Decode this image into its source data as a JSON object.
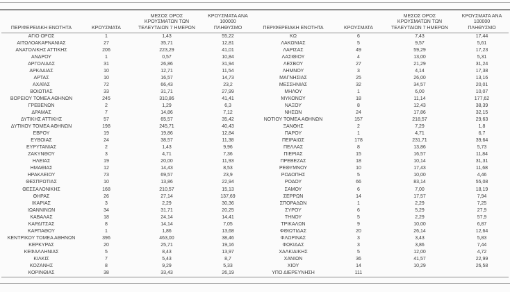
{
  "table": {
    "columns": [
      "ΠΕΡΙΦΕΡΕΙΑΚΗ ΕΝΟΤΗΤΑ",
      "ΚΡΟΥΣΜΑΤΑ",
      "ΜΕΣΟΣ ΟΡΟΣ\nΚΡΟΥΣΜΑΤΩΝ ΤΩΝ\nΤΕΛΕΥΤΑΙΩΝ 7 ΗΜΕΡΩΝ",
      "ΚΡΟΥΣΜΑΤΑ ΑΝΑ 100000\nΠΛΗΘΥΣΜΟ"
    ],
    "left_rows": [
      [
        "ΑΓΙΟ ΟΡΟΣ",
        "1",
        "1,43",
        "55,22"
      ],
      [
        "ΑΙΤΩΛΟΑΚΑΡΝΑΝΙΑΣ",
        "27",
        "35,71",
        "12,81"
      ],
      [
        "ΑΝΑΤΟΛΙΚΗΣ ΑΤΤΙΚΗΣ",
        "206",
        "223,29",
        "41,01"
      ],
      [
        "ΑΝΔΡΟΥ",
        "1",
        "0,57",
        "10,84"
      ],
      [
        "ΑΡΓΟΛΙΔΑΣ",
        "31",
        "26,86",
        "31,94"
      ],
      [
        "ΑΡΚΑΔΙΑΣ",
        "10",
        "12,71",
        "11,54"
      ],
      [
        "ΑΡΤΑΣ",
        "10",
        "16,57",
        "14,73"
      ],
      [
        "ΑΧΑΪΑΣ",
        "72",
        "66,43",
        "23,2"
      ],
      [
        "ΒΟΙΩΤΙΑΣ",
        "33",
        "31,71",
        "27,99"
      ],
      [
        "ΒΟΡΕΙΟΥ ΤΟΜΕΑ ΑΘΗΝΩΝ",
        "245",
        "310,86",
        "41,41"
      ],
      [
        "ΓΡΕΒΕΝΩΝ",
        "2",
        "1,29",
        "6,3"
      ],
      [
        "ΔΡΑΜΑΣ",
        "7",
        "14,86",
        "7,12"
      ],
      [
        "ΔΥΤΙΚΗΣ ΑΤΤΙΚΗΣ",
        "57",
        "65,57",
        "35,42"
      ],
      [
        "ΔΥΤΙΚΟΥ ΤΟΜΕΑ ΑΘΗΝΩΝ",
        "198",
        "245,71",
        "40,43"
      ],
      [
        "ΕΒΡΟΥ",
        "19",
        "19,86",
        "12,84"
      ],
      [
        "ΕΥΒΟΙΑΣ",
        "24",
        "38,57",
        "11,38"
      ],
      [
        "ΕΥΡΥΤΑΝΙΑΣ",
        "2",
        "1,43",
        "9,96"
      ],
      [
        "ΖΑΚΥΝΘΟΥ",
        "3",
        "4,71",
        "7,36"
      ],
      [
        "ΗΛΕΙΑΣ",
        "19",
        "20,00",
        "11,93"
      ],
      [
        "ΗΜΑΘΙΑΣ",
        "12",
        "14,43",
        "8,53"
      ],
      [
        "ΗΡΑΚΛΕΙΟΥ",
        "73",
        "69,57",
        "23,9"
      ],
      [
        "ΘΕΣΠΡΩΤΙΑΣ",
        "10",
        "13,86",
        "22,94"
      ],
      [
        "ΘΕΣΣΑΛΟΝΙΚΗΣ",
        "168",
        "210,57",
        "15,13"
      ],
      [
        "ΘΗΡΑΣ",
        "26",
        "27,14",
        "137,69"
      ],
      [
        "ΙΚΑΡΙΑΣ",
        "3",
        "2,29",
        "30,36"
      ],
      [
        "ΙΩΑΝΝΙΝΩΝ",
        "34",
        "31,71",
        "20,25"
      ],
      [
        "ΚΑΒΑΛΑΣ",
        "18",
        "24,14",
        "14,41"
      ],
      [
        "ΚΑΡΔΙΤΣΑΣ",
        "8",
        "14,14",
        "7,05"
      ],
      [
        "ΚΑΡΠΑΘΟΥ",
        "1",
        "1,86",
        "13,68"
      ],
      [
        "ΚΕΝΤΡΙΚΟΥ ΤΟΜΕΑ ΑΘΗΝΩΝ",
        "396",
        "463,00",
        "38,46"
      ],
      [
        "ΚΕΡΚΥΡΑΣ",
        "20",
        "25,71",
        "19,16"
      ],
      [
        "ΚΕΦΑΛΛΗΝΙΑΣ",
        "5",
        "8,43",
        "13,97"
      ],
      [
        "ΚΙΛΚΙΣ",
        "7",
        "5,43",
        "8,7"
      ],
      [
        "ΚΟΖΑΝΗΣ",
        "8",
        "9,29",
        "5,33"
      ],
      [
        "ΚΟΡΙΝΘΙΑΣ",
        "38",
        "33,43",
        "26,19"
      ]
    ],
    "right_rows": [
      [
        "ΚΩ",
        "6",
        "7,43",
        "17,44"
      ],
      [
        "ΛΑΚΩΝΙΑΣ",
        "5",
        "9,57",
        "5,61"
      ],
      [
        "ΛΑΡΙΣΑΣ",
        "49",
        "59,29",
        "17,23"
      ],
      [
        "ΛΑΣΙΘΙΟΥ",
        "4",
        "13,00",
        "5,31"
      ],
      [
        "ΛΕΣΒΟΥ",
        "27",
        "21,29",
        "31,24"
      ],
      [
        "ΛΗΜΝΟΥ",
        "3",
        "4,14",
        "17,38"
      ],
      [
        "ΜΑΓΝΗΣΙΑΣ",
        "25",
        "26,00",
        "13,16"
      ],
      [
        "ΜΕΣΣΗΝΙΑΣ",
        "32",
        "34,57",
        "20,01"
      ],
      [
        "ΜΗΛΟΥ",
        "1",
        "6,00",
        "10,07"
      ],
      [
        "ΜΥΚΟΝΟΥ",
        "18",
        "11,14",
        "177,62"
      ],
      [
        "ΝΑΞΟΥ",
        "8",
        "12,43",
        "38,39"
      ],
      [
        "ΝΗΣΩΝ",
        "24",
        "17,86",
        "32,15"
      ],
      [
        "ΝΟΤΙΟΥ ΤΟΜΕΑ ΑΘΗΝΩΝ",
        "157",
        "218,57",
        "29,63"
      ],
      [
        "ΞΑΝΘΗΣ",
        "2",
        "7,29",
        "1,8"
      ],
      [
        "ΠΑΡΟΥ",
        "1",
        "4,71",
        "6,7"
      ],
      [
        "ΠΕΙΡΑΙΩΣ",
        "178",
        "231,71",
        "39,64"
      ],
      [
        "ΠΕΛΛΑΣ",
        "8",
        "13,86",
        "5,73"
      ],
      [
        "ΠΙΕΡΙΑΣ",
        "15",
        "16,57",
        "11,84"
      ],
      [
        "ΠΡΕΒΕΖΑΣ",
        "18",
        "10,14",
        "31,31"
      ],
      [
        "ΡΕΘΥΜΝΟΥ",
        "10",
        "17,43",
        "11,68"
      ],
      [
        "ΡΟΔΟΠΗΣ",
        "5",
        "10,00",
        "4,46"
      ],
      [
        "ΡΟΔΟΥ",
        "66",
        "83,14",
        "55,08"
      ],
      [
        "ΣΑΜΟΥ",
        "6",
        "7,00",
        "18,19"
      ],
      [
        "ΣΕΡΡΩΝ",
        "14",
        "17,57",
        "7,94"
      ],
      [
        "ΣΠΟΡΑΔΩΝ",
        "1",
        "2,29",
        "7,25"
      ],
      [
        "ΣΥΡΟΥ",
        "6",
        "5,29",
        "27,9"
      ],
      [
        "ΤΗΝΟΥ",
        "5",
        "2,29",
        "57,9"
      ],
      [
        "ΤΡΙΚΑΛΩΝ",
        "9",
        "10,00",
        "6,87"
      ],
      [
        "ΦΘΙΩΤΙΔΑΣ",
        "20",
        "26,14",
        "12,64"
      ],
      [
        "ΦΛΩΡΙΝΑΣ",
        "3",
        "3,43",
        "5,83"
      ],
      [
        "ΦΩΚΙΔΑΣ",
        "3",
        "3,86",
        "7,44"
      ],
      [
        "ΧΑΛΚΙΔΙΚΗΣ",
        "5",
        "12,00",
        "4,72"
      ],
      [
        "ΧΑΝΙΩΝ",
        "36",
        "41,57",
        "22,99"
      ],
      [
        "ΧΙΟΥ",
        "14",
        "10,29",
        "26,58"
      ],
      [
        "ΥΠΟ ΔΙΕΡΕΥΝΗΣΗ",
        "111",
        "",
        ""
      ]
    ]
  }
}
